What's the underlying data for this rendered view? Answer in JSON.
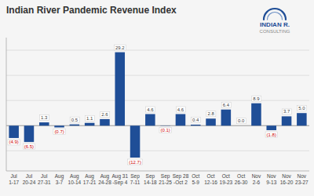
{
  "chart_data": {
    "type": "bar",
    "title": "Indian River Pandemic Revenue Index",
    "categories": [
      "Jul\n1-17",
      "Jul\n20-24",
      "Jul\n27-31",
      "Aug\n3-7",
      "Aug\n10-14",
      "Aug\n17-21",
      "Aug\n24-28",
      "Aug 31\n-Sep 4",
      "Sep\n7-11",
      "Sep\n14-18",
      "Sep\n21-25",
      "Sep 28\n-Oct 2",
      "Oct\n5-9",
      "Oct\n12-16",
      "Oct\n19-23",
      "Oct\n26-30",
      "Nov\n2-6",
      "Nov\n9-13",
      "Nov\n16-20",
      "Nov\n23-27"
    ],
    "values": [
      -4.9,
      -6.5,
      1.3,
      -0.7,
      0.5,
      1.1,
      2.6,
      29.2,
      -12.7,
      4.6,
      -0.1,
      4.6,
      0.4,
      2.8,
      6.4,
      0.0,
      8.9,
      -1.8,
      3.7,
      5.0
    ],
    "value_labels": [
      "(4.9)",
      "(6.5)",
      "1.3",
      "(0.7)",
      "0.5",
      "1.1",
      "2.6",
      "29.2",
      "(12.7)",
      "4.6",
      "(0.1)",
      "4.6",
      "0.4",
      "2.8",
      "6.4",
      "0.0",
      "8.9",
      "(1.8)",
      "3.7",
      "5.0"
    ],
    "color": "#1f4e97",
    "data_labels": true,
    "ylim": [
      -18,
      35
    ],
    "yticks": [
      -10,
      0,
      10,
      20,
      30
    ],
    "grid": true,
    "tick_labels": "x",
    "annotations": [
      "INDIAN R.",
      "CONSULTING"
    ]
  }
}
